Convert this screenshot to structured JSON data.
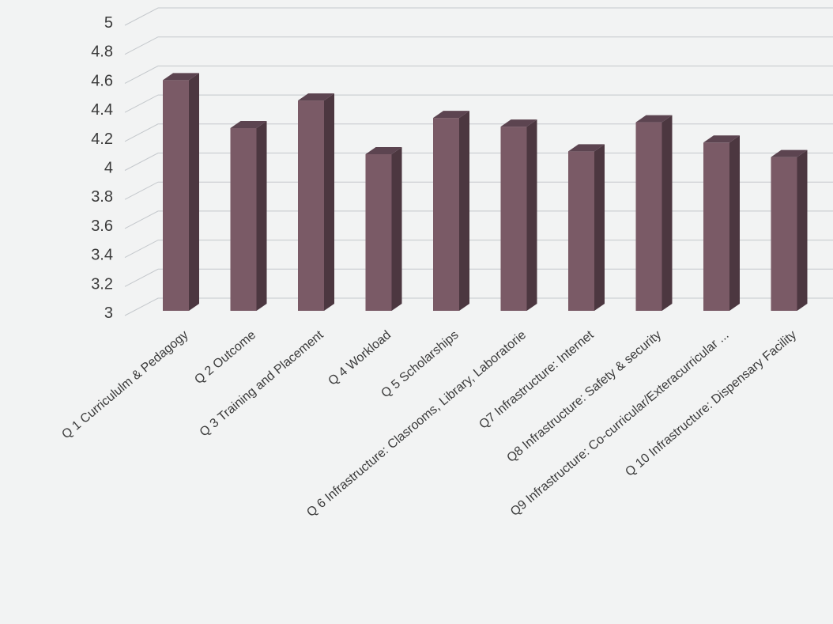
{
  "chart_data": {
    "type": "bar",
    "categories": [
      "Q 1 Curricululm & Pedagogy",
      "Q 2 Outcome",
      "Q 3 Training and Placement",
      "Q 4 Workload",
      "Q 5 Scholarships",
      "Q 6 Infrastructure: Clasrooms, Library, Laboratorie",
      "Q7 Infrastructure: Internet",
      "Q8 Infrastructure:  Safety & security",
      "Q9  Infrastructure: Co-curricular/Exteracurricular ...",
      "Q 10 Infrastructure: Dispensary Facility"
    ],
    "values": [
      4.6,
      4.27,
      4.46,
      4.09,
      4.34,
      4.28,
      4.11,
      4.31,
      4.17,
      4.07
    ],
    "ylim": [
      3,
      5
    ],
    "yticks": [
      "3",
      "3.2",
      "3.4",
      "3.6",
      "3.8",
      "4",
      "4.2",
      "4.4",
      "4.6",
      "4.8",
      "5"
    ],
    "grid": true,
    "legend": "none",
    "colors": {
      "bar_front": "#7a5a66",
      "bar_side": "#4c3740",
      "bar_top": "#5c4450",
      "gridline": "#c4c8cc",
      "background": "#f2f3f3"
    }
  }
}
